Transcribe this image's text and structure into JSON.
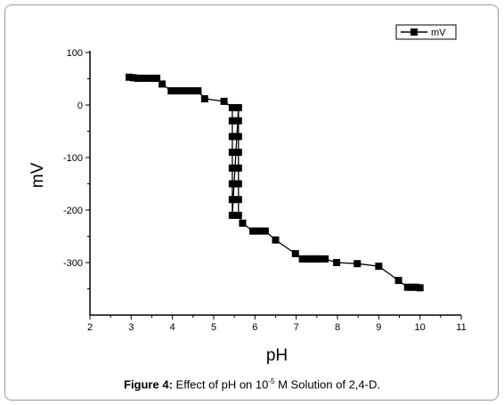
{
  "chart_data": {
    "type": "line",
    "title": "",
    "xlabel": "pH",
    "ylabel": "mV",
    "xlim": [
      2,
      11
    ],
    "ylim": [
      -400,
      100
    ],
    "x_ticks": [
      "2",
      "3",
      "4",
      "5",
      "6",
      "7",
      "8",
      "9",
      "10",
      "11"
    ],
    "y_ticks": [
      "100",
      "0",
      "-100",
      "-200",
      "-300"
    ],
    "legend_position": "top-right",
    "series": [
      {
        "name": "mV",
        "color": "#000000",
        "marker": "square",
        "points": [
          [
            2.95,
            53
          ],
          [
            3.05,
            52
          ],
          [
            3.15,
            51
          ],
          [
            3.25,
            51
          ],
          [
            3.35,
            51
          ],
          [
            3.45,
            51
          ],
          [
            3.55,
            51
          ],
          [
            3.62,
            51
          ],
          [
            3.75,
            40
          ],
          [
            3.97,
            27
          ],
          [
            4.05,
            27
          ],
          [
            4.15,
            27
          ],
          [
            4.25,
            27
          ],
          [
            4.35,
            27
          ],
          [
            4.45,
            27
          ],
          [
            4.55,
            27
          ],
          [
            4.62,
            27
          ],
          [
            4.78,
            12
          ],
          [
            5.25,
            7
          ],
          [
            5.45,
            -5
          ],
          [
            5.45,
            -30
          ],
          [
            5.45,
            -60
          ],
          [
            5.45,
            -90
          ],
          [
            5.45,
            -120
          ],
          [
            5.45,
            -150
          ],
          [
            5.45,
            -180
          ],
          [
            5.45,
            -210
          ],
          [
            5.6,
            -5
          ],
          [
            5.6,
            -30
          ],
          [
            5.6,
            -60
          ],
          [
            5.6,
            -90
          ],
          [
            5.6,
            -120
          ],
          [
            5.6,
            -150
          ],
          [
            5.6,
            -180
          ],
          [
            5.6,
            -210
          ],
          [
            5.7,
            -225
          ],
          [
            5.95,
            -240
          ],
          [
            6.05,
            -240
          ],
          [
            6.15,
            -240
          ],
          [
            6.25,
            -240
          ],
          [
            6.5,
            -257
          ],
          [
            6.98,
            -283
          ],
          [
            7.15,
            -293
          ],
          [
            7.25,
            -293
          ],
          [
            7.35,
            -293
          ],
          [
            7.45,
            -293
          ],
          [
            7.55,
            -293
          ],
          [
            7.7,
            -293
          ],
          [
            7.98,
            -300
          ],
          [
            8.48,
            -302
          ],
          [
            9.0,
            -307
          ],
          [
            9.48,
            -334
          ],
          [
            9.7,
            -347
          ],
          [
            9.8,
            -347
          ],
          [
            9.9,
            -347
          ],
          [
            10.0,
            -348
          ]
        ]
      }
    ]
  },
  "caption": {
    "figure_label": "Figure 4:",
    "text_before": " Effect of pH on 10",
    "superscript": "-5",
    "text_after": " M Solution of 2,4-D."
  }
}
